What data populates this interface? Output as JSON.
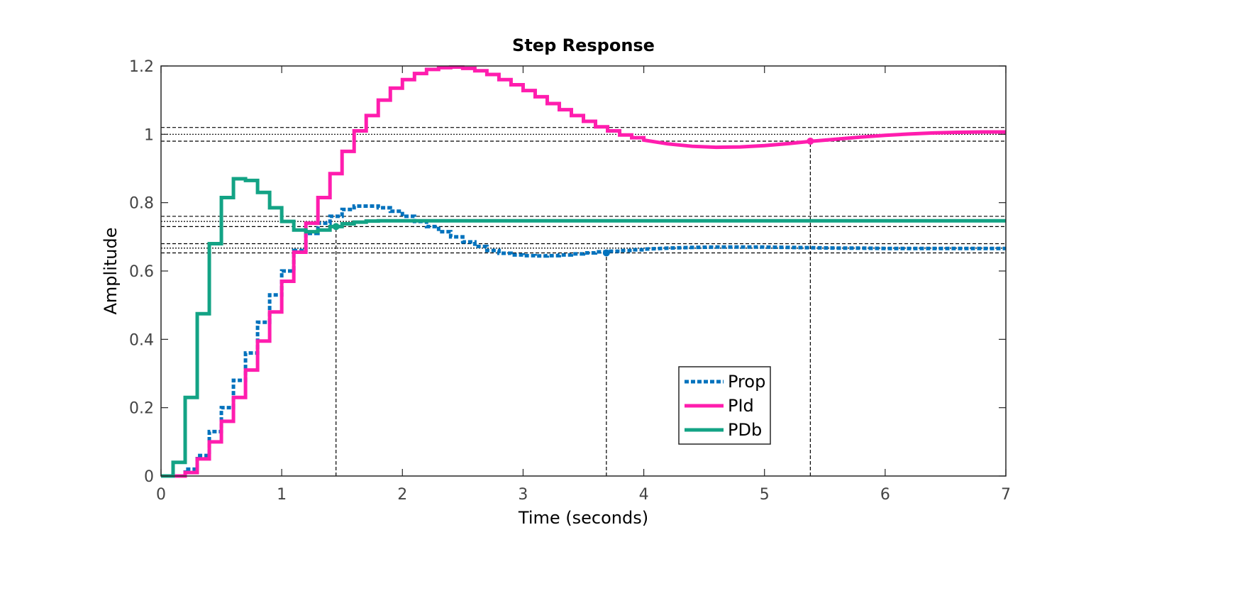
{
  "chart_data": {
    "type": "line",
    "title": "Step Response",
    "xlabel": "Time (seconds)",
    "ylabel": "Amplitude",
    "xlim": [
      0,
      7
    ],
    "ylim": [
      0,
      1.2
    ],
    "xticks": [
      "0",
      "1",
      "2",
      "3",
      "4",
      "5",
      "6",
      "7"
    ],
    "yticks": [
      "0",
      "0.2",
      "0.4",
      "0.6",
      "0.8",
      "1",
      "1.2"
    ],
    "grid": false,
    "legend_placement": "lower-center-right",
    "sample_time": 0.1,
    "reference_lines": {
      "horizontal": [
        {
          "y": 1.0,
          "style": "dotted"
        },
        {
          "y": 1.02,
          "style": "dashed"
        },
        {
          "y": 0.98,
          "style": "dashed"
        },
        {
          "y": 0.745,
          "style": "dotted"
        },
        {
          "y": 0.76,
          "style": "dashed"
        },
        {
          "y": 0.73,
          "style": "dashed"
        },
        {
          "y": 0.667,
          "style": "dotted"
        },
        {
          "y": 0.68,
          "style": "dashed"
        },
        {
          "y": 0.653,
          "style": "dashed"
        }
      ],
      "vertical": [
        1.45,
        3.69,
        5.38
      ]
    },
    "series": [
      {
        "name": "Prop",
        "color": "#0072BD",
        "style": "dotted",
        "settling_point": {
          "x": 3.69,
          "y": 0.653
        },
        "x": [
          0,
          0.1,
          0.2,
          0.3,
          0.4,
          0.5,
          0.6,
          0.7,
          0.8,
          0.9,
          1.0,
          1.1,
          1.2,
          1.3,
          1.4,
          1.5,
          1.6,
          1.7,
          1.8,
          1.9,
          2.0,
          2.1,
          2.2,
          2.3,
          2.4,
          2.5,
          2.6,
          2.7,
          2.8,
          2.9,
          3.0,
          3.1,
          3.2,
          3.3,
          3.4,
          3.5,
          3.6,
          3.7,
          3.8,
          3.9,
          4.0,
          4.2,
          4.4,
          4.6,
          4.8,
          5.0,
          5.2,
          5.4,
          5.6,
          5.8,
          6.0,
          6.2,
          6.4,
          6.6,
          6.8,
          7.0
        ],
        "values": [
          0,
          0,
          0.02,
          0.06,
          0.13,
          0.2,
          0.28,
          0.36,
          0.45,
          0.53,
          0.6,
          0.66,
          0.71,
          0.74,
          0.76,
          0.78,
          0.79,
          0.79,
          0.785,
          0.775,
          0.76,
          0.745,
          0.73,
          0.715,
          0.7,
          0.685,
          0.672,
          0.66,
          0.652,
          0.647,
          0.645,
          0.644,
          0.645,
          0.647,
          0.65,
          0.653,
          0.656,
          0.658,
          0.66,
          0.662,
          0.664,
          0.667,
          0.669,
          0.67,
          0.67,
          0.67,
          0.669,
          0.668,
          0.667,
          0.667,
          0.666,
          0.666,
          0.666,
          0.666,
          0.666,
          0.666
        ]
      },
      {
        "name": "PId",
        "color": "#FF1DAE",
        "style": "solid",
        "settling_point": {
          "x": 5.38,
          "y": 0.98
        },
        "x": [
          0,
          0.1,
          0.2,
          0.3,
          0.4,
          0.5,
          0.6,
          0.7,
          0.8,
          0.9,
          1.0,
          1.1,
          1.2,
          1.3,
          1.4,
          1.5,
          1.6,
          1.7,
          1.8,
          1.9,
          2.0,
          2.1,
          2.2,
          2.3,
          2.4,
          2.5,
          2.6,
          2.7,
          2.8,
          2.9,
          3.0,
          3.1,
          3.2,
          3.3,
          3.4,
          3.5,
          3.6,
          3.7,
          3.8,
          3.9,
          4.0,
          4.2,
          4.4,
          4.6,
          4.8,
          5.0,
          5.2,
          5.4,
          5.6,
          5.8,
          6.0,
          6.2,
          6.4,
          6.6,
          6.8,
          7.0
        ],
        "values": [
          0,
          0,
          0.01,
          0.05,
          0.1,
          0.16,
          0.23,
          0.31,
          0.395,
          0.48,
          0.57,
          0.655,
          0.74,
          0.815,
          0.885,
          0.95,
          1.01,
          1.055,
          1.1,
          1.135,
          1.16,
          1.178,
          1.19,
          1.195,
          1.197,
          1.193,
          1.186,
          1.175,
          1.16,
          1.145,
          1.128,
          1.11,
          1.09,
          1.072,
          1.055,
          1.038,
          1.022,
          1.01,
          0.998,
          0.99,
          0.983,
          0.972,
          0.965,
          0.962,
          0.963,
          0.967,
          0.973,
          0.98,
          0.986,
          0.992,
          0.997,
          1.001,
          1.004,
          1.006,
          1.007,
          1.007
        ]
      },
      {
        "name": "PDb",
        "color": "#13A385",
        "style": "solid",
        "settling_point": {
          "x": 1.45,
          "y": 0.73
        },
        "x": [
          0,
          0.1,
          0.2,
          0.3,
          0.4,
          0.5,
          0.6,
          0.7,
          0.8,
          0.9,
          1.0,
          1.1,
          1.2,
          1.3,
          1.4,
          1.5,
          1.6,
          1.7,
          1.8,
          1.9,
          2.0,
          2.2,
          2.4,
          2.6,
          3.0,
          3.5,
          4.0,
          5.0,
          6.0,
          7.0
        ],
        "values": [
          0,
          0.04,
          0.23,
          0.475,
          0.68,
          0.815,
          0.87,
          0.865,
          0.83,
          0.785,
          0.745,
          0.72,
          0.715,
          0.72,
          0.73,
          0.738,
          0.743,
          0.746,
          0.747,
          0.747,
          0.747,
          0.747,
          0.747,
          0.747,
          0.747,
          0.747,
          0.747,
          0.747,
          0.747,
          0.747
        ]
      }
    ]
  }
}
